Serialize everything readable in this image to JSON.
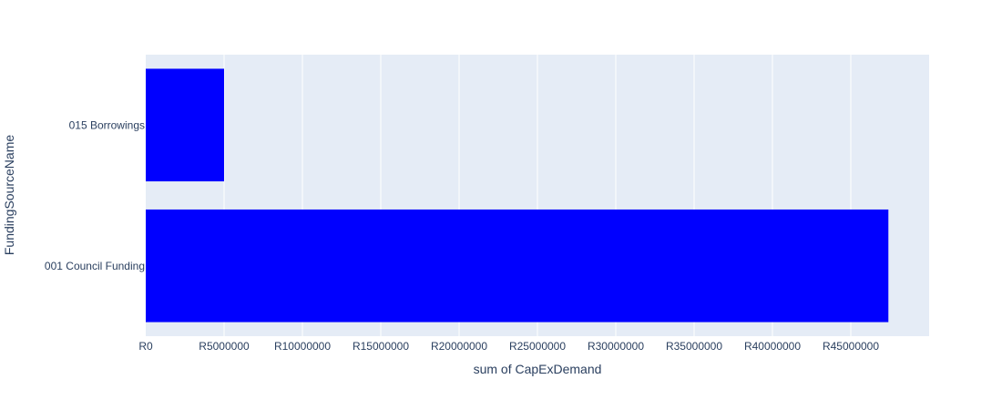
{
  "chart_data": {
    "type": "bar",
    "orientation": "horizontal",
    "categories": [
      "015 Borrowings",
      "001 Council Funding"
    ],
    "values": [
      5000000,
      47400000
    ],
    "xlabel": "sum of CapExDemand",
    "ylabel": "FundingSourceName",
    "xlim": [
      0,
      50000000
    ],
    "x_ticks": [
      0,
      5000000,
      10000000,
      15000000,
      20000000,
      25000000,
      30000000,
      35000000,
      40000000,
      45000000
    ],
    "x_tick_labels": [
      "R0",
      "R5000000",
      "R10000000",
      "R15000000",
      "R20000000",
      "R25000000",
      "R30000000",
      "R35000000",
      "R40000000",
      "R45000000"
    ],
    "grid": true,
    "bar_color": "#0000ff",
    "plot_background": "#e5ecf6",
    "gridline_color": "#ffffff",
    "text_color": "#2a3f5f"
  }
}
